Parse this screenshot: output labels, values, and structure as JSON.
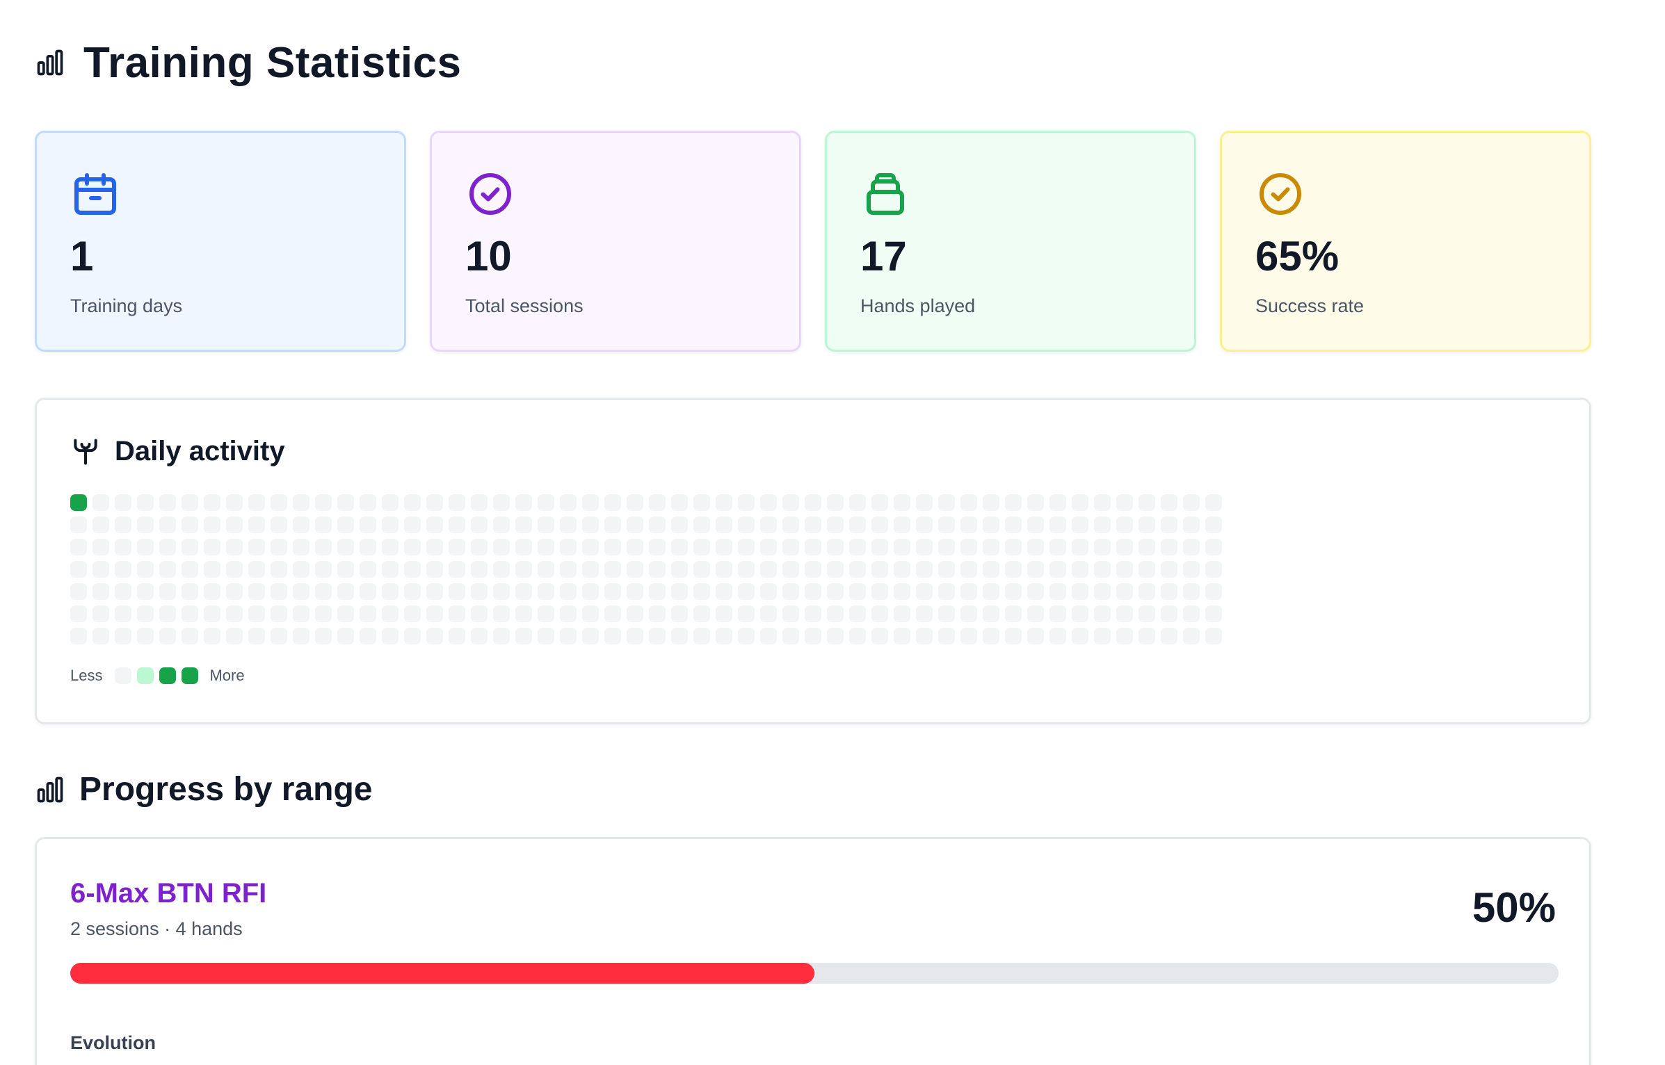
{
  "page": {
    "title": "Training Statistics",
    "title_icon": "bar-chart-icon"
  },
  "stats": [
    {
      "value": "1",
      "label": "Training days",
      "icon": "calendar-icon",
      "color": "#2563eb"
    },
    {
      "value": "10",
      "label": "Total sessions",
      "icon": "check-circle-icon",
      "color": "#7e22ce"
    },
    {
      "value": "17",
      "label": "Hands played",
      "icon": "card-stack-icon",
      "color": "#16a34a"
    },
    {
      "value": "65%",
      "label": "Success rate",
      "icon": "check-circle-icon",
      "color": "#ca8a04"
    }
  ],
  "activity": {
    "title": "Daily activity",
    "icon": "activity-icon",
    "weeks": 52,
    "days_per_week": 7,
    "active_cells": [
      {
        "week": 0,
        "day": 0,
        "level": 3
      }
    ],
    "legend": {
      "less": "Less",
      "more": "More",
      "colors": [
        "#f3f4f6",
        "#bbf7d0",
        "#16a34a",
        "#16a34a"
      ]
    }
  },
  "progress": {
    "title": "Progress by range",
    "icon": "bar-chart-icon",
    "ranges": [
      {
        "name": "6-Max BTN RFI",
        "meta": "2 sessions · 4 hands",
        "percent": "50%",
        "bar_fill_fraction": 0.5,
        "bar_color": "#ff2d3d",
        "evolution_label": "Evolution"
      }
    ]
  }
}
